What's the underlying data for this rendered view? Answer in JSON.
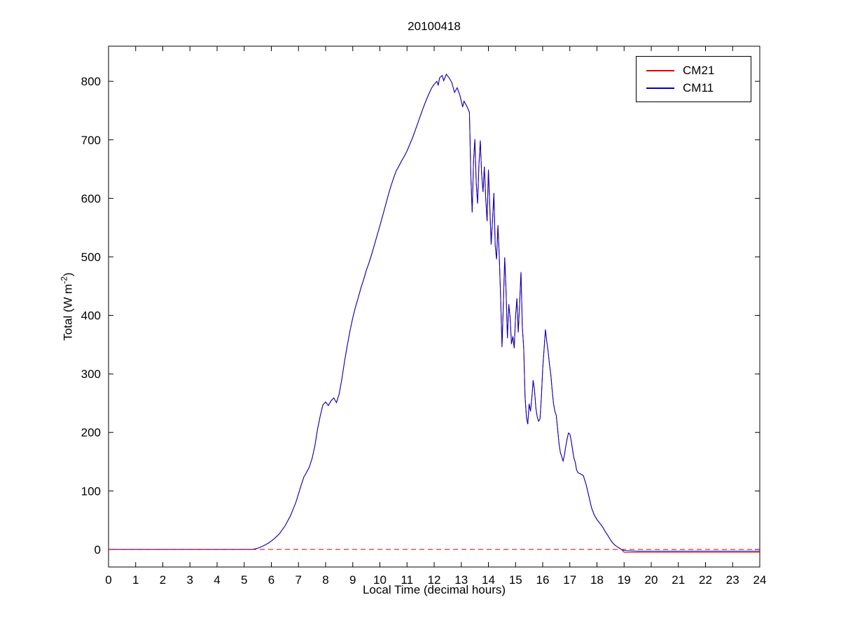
{
  "chart_data": {
    "type": "line",
    "title": "20100418",
    "xlabel": "Local Time (decimal hours)",
    "ylabel": {
      "prefix": "Total (W m",
      "sup": "-2",
      "suffix": ")"
    },
    "xlim": [
      0,
      24
    ],
    "ylim": [
      -30,
      860
    ],
    "x_ticks": [
      0,
      1,
      2,
      3,
      4,
      5,
      6,
      7,
      8,
      9,
      10,
      11,
      12,
      13,
      14,
      15,
      16,
      17,
      18,
      19,
      20,
      21,
      22,
      23,
      24
    ],
    "y_ticks": [
      0,
      100,
      200,
      300,
      400,
      500,
      600,
      700,
      800
    ],
    "grid": false,
    "legend_position": "top-right",
    "zero_line": {
      "y": 0,
      "color": "#dd0000",
      "style": "dashed"
    },
    "series": [
      {
        "name": "CM21",
        "color": "#dd0000",
        "style": "solid",
        "overlaps_series": "CM11",
        "overlap_until_x": 18.9,
        "points": [
          [
            19.0,
            -5
          ],
          [
            20.0,
            -5
          ],
          [
            21.0,
            -5
          ],
          [
            22.0,
            -5
          ],
          [
            23.0,
            -5
          ],
          [
            24.0,
            -5
          ]
        ]
      },
      {
        "name": "CM11",
        "color": "#0000c8",
        "style": "solid",
        "points": [
          [
            0,
            0
          ],
          [
            0.5,
            0
          ],
          [
            1,
            0
          ],
          [
            1.5,
            0
          ],
          [
            2,
            0
          ],
          [
            2.5,
            0
          ],
          [
            3,
            0
          ],
          [
            3.5,
            0
          ],
          [
            4,
            0
          ],
          [
            4.5,
            0
          ],
          [
            5,
            0
          ],
          [
            5.3,
            0
          ],
          [
            5.5,
            2
          ],
          [
            5.7,
            6
          ],
          [
            5.9,
            11
          ],
          [
            6.1,
            18
          ],
          [
            6.3,
            27
          ],
          [
            6.5,
            40
          ],
          [
            6.7,
            57
          ],
          [
            6.9,
            80
          ],
          [
            7.0,
            95
          ],
          [
            7.1,
            110
          ],
          [
            7.2,
            124
          ],
          [
            7.3,
            132
          ],
          [
            7.4,
            141
          ],
          [
            7.5,
            155
          ],
          [
            7.6,
            176
          ],
          [
            7.7,
            205
          ],
          [
            7.8,
            228
          ],
          [
            7.9,
            247
          ],
          [
            8.0,
            252
          ],
          [
            8.1,
            246
          ],
          [
            8.2,
            254
          ],
          [
            8.3,
            259
          ],
          [
            8.4,
            251
          ],
          [
            8.5,
            266
          ],
          [
            8.6,
            292
          ],
          [
            8.7,
            322
          ],
          [
            8.8,
            349
          ],
          [
            8.9,
            374
          ],
          [
            9.0,
            396
          ],
          [
            9.1,
            414
          ],
          [
            9.2,
            430
          ],
          [
            9.3,
            447
          ],
          [
            9.4,
            461
          ],
          [
            9.5,
            477
          ],
          [
            9.6,
            490
          ],
          [
            9.7,
            505
          ],
          [
            9.8,
            521
          ],
          [
            9.9,
            537
          ],
          [
            10.0,
            553
          ],
          [
            10.1,
            570
          ],
          [
            10.2,
            587
          ],
          [
            10.3,
            604
          ],
          [
            10.4,
            620
          ],
          [
            10.5,
            634
          ],
          [
            10.6,
            647
          ],
          [
            10.7,
            655
          ],
          [
            10.8,
            664
          ],
          [
            10.9,
            672
          ],
          [
            11.0,
            681
          ],
          [
            11.1,
            692
          ],
          [
            11.2,
            703
          ],
          [
            11.3,
            716
          ],
          [
            11.4,
            729
          ],
          [
            11.5,
            742
          ],
          [
            11.6,
            755
          ],
          [
            11.7,
            767
          ],
          [
            11.8,
            778
          ],
          [
            11.9,
            788
          ],
          [
            12.0,
            795
          ],
          [
            12.1,
            800
          ],
          [
            12.15,
            793
          ],
          [
            12.2,
            806
          ],
          [
            12.3,
            810
          ],
          [
            12.35,
            801
          ],
          [
            12.45,
            812
          ],
          [
            12.55,
            806
          ],
          [
            12.65,
            798
          ],
          [
            12.75,
            781
          ],
          [
            12.85,
            789
          ],
          [
            12.95,
            776
          ],
          [
            13.05,
            756
          ],
          [
            13.1,
            766
          ],
          [
            13.2,
            758
          ],
          [
            13.3,
            747
          ],
          [
            13.35,
            642
          ],
          [
            13.4,
            576
          ],
          [
            13.45,
            662
          ],
          [
            13.5,
            701
          ],
          [
            13.55,
            626
          ],
          [
            13.6,
            591
          ],
          [
            13.65,
            656
          ],
          [
            13.7,
            699
          ],
          [
            13.75,
            641
          ],
          [
            13.8,
            611
          ],
          [
            13.85,
            654
          ],
          [
            13.9,
            601
          ],
          [
            13.95,
            561
          ],
          [
            14.0,
            649
          ],
          [
            14.05,
            589
          ],
          [
            14.1,
            521
          ],
          [
            14.15,
            561
          ],
          [
            14.2,
            609
          ],
          [
            14.25,
            519
          ],
          [
            14.3,
            496
          ],
          [
            14.35,
            554
          ],
          [
            14.4,
            501
          ],
          [
            14.45,
            431
          ],
          [
            14.5,
            346
          ],
          [
            14.55,
            419
          ],
          [
            14.6,
            499
          ],
          [
            14.65,
            441
          ],
          [
            14.7,
            361
          ],
          [
            14.75,
            419
          ],
          [
            14.8,
            396
          ],
          [
            14.85,
            351
          ],
          [
            14.9,
            364
          ],
          [
            14.95,
            344
          ],
          [
            15.0,
            399
          ],
          [
            15.05,
            429
          ],
          [
            15.1,
            371
          ],
          [
            15.15,
            421
          ],
          [
            15.2,
            474
          ],
          [
            15.25,
            381
          ],
          [
            15.3,
            344
          ],
          [
            15.35,
            261
          ],
          [
            15.4,
            226
          ],
          [
            15.45,
            214
          ],
          [
            15.5,
            249
          ],
          [
            15.55,
            236
          ],
          [
            15.6,
            259
          ],
          [
            15.65,
            289
          ],
          [
            15.7,
            271
          ],
          [
            15.75,
            241
          ],
          [
            15.8,
            226
          ],
          [
            15.85,
            219
          ],
          [
            15.9,
            223
          ],
          [
            15.95,
            259
          ],
          [
            16.0,
            309
          ],
          [
            16.05,
            341
          ],
          [
            16.1,
            376
          ],
          [
            16.15,
            356
          ],
          [
            16.2,
            339
          ],
          [
            16.25,
            316
          ],
          [
            16.3,
            299
          ],
          [
            16.35,
            271
          ],
          [
            16.4,
            249
          ],
          [
            16.45,
            236
          ],
          [
            16.5,
            229
          ],
          [
            16.55,
            206
          ],
          [
            16.6,
            181
          ],
          [
            16.65,
            166
          ],
          [
            16.7,
            159
          ],
          [
            16.75,
            151
          ],
          [
            16.8,
            161
          ],
          [
            16.85,
            176
          ],
          [
            16.9,
            189
          ],
          [
            16.95,
            199
          ],
          [
            17.0,
            197
          ],
          [
            17.05,
            186
          ],
          [
            17.1,
            171
          ],
          [
            17.15,
            156
          ],
          [
            17.2,
            149
          ],
          [
            17.25,
            136
          ],
          [
            17.3,
            131
          ],
          [
            17.4,
            129
          ],
          [
            17.5,
            126
          ],
          [
            17.6,
            111
          ],
          [
            17.7,
            91
          ],
          [
            17.8,
            71
          ],
          [
            17.9,
            59
          ],
          [
            18.0,
            51
          ],
          [
            18.1,
            45
          ],
          [
            18.2,
            39
          ],
          [
            18.3,
            31
          ],
          [
            18.4,
            24
          ],
          [
            18.5,
            16
          ],
          [
            18.6,
            10
          ],
          [
            18.7,
            6
          ],
          [
            18.8,
            3
          ],
          [
            18.9,
            0
          ],
          [
            19.0,
            -2
          ],
          [
            19.5,
            -3
          ],
          [
            20.0,
            -3
          ],
          [
            21.0,
            -3
          ],
          [
            22.0,
            -3
          ],
          [
            23.0,
            -3
          ],
          [
            24.0,
            -3
          ]
        ]
      }
    ]
  }
}
